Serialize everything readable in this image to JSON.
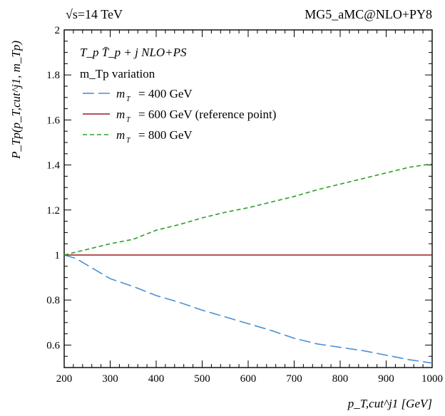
{
  "chart_data": {
    "type": "line",
    "top_left": "√s=14 TeV",
    "top_right": "MG5_aMC@NLO+PY8",
    "process": "T_p T̄_p + j  NLO+PS",
    "variation": "m_Tp variation",
    "ylabel": "P_Tp(p_T,cut^j1, m_Tp)",
    "xlabel": "p_T,cut^j1 [GeV]",
    "xlim": [
      200,
      1000
    ],
    "ylim": [
      0.5,
      2.0
    ],
    "xticks": [
      200,
      300,
      400,
      500,
      600,
      700,
      800,
      900,
      1000
    ],
    "yticks": [
      {
        "value": 0.6,
        "label": "0.6"
      },
      {
        "value": 0.8,
        "label": "0.8"
      },
      {
        "value": 1.0,
        "label": "1"
      },
      {
        "value": 1.2,
        "label": "1.2"
      },
      {
        "value": 1.4,
        "label": "1.4"
      },
      {
        "value": 1.6,
        "label": "1.6"
      },
      {
        "value": 1.8,
        "label": "1.8"
      },
      {
        "value": 2.0,
        "label": "2"
      }
    ],
    "legend_position": "top-left",
    "grid": false,
    "series": [
      {
        "name": "= 400 GeV",
        "color": "#4a8fd4",
        "style": "long-dash",
        "x": [
          200,
          225,
          250,
          275,
          300,
          350,
          400,
          450,
          500,
          550,
          600,
          650,
          700,
          750,
          800,
          850,
          900,
          950,
          1000
        ],
        "y": [
          1.0,
          0.985,
          0.955,
          0.925,
          0.895,
          0.86,
          0.82,
          0.79,
          0.755,
          0.725,
          0.695,
          0.665,
          0.63,
          0.605,
          0.59,
          0.575,
          0.555,
          0.535,
          0.52
        ]
      },
      {
        "name": "= 600 GeV (reference point)",
        "color": "#9b1b1b",
        "style": "solid",
        "x": [
          200,
          1000
        ],
        "y": [
          1.0,
          1.0
        ]
      },
      {
        "name": "= 800 GeV",
        "color": "#2aa02a",
        "style": "short-dash",
        "x": [
          200,
          250,
          300,
          350,
          400,
          450,
          500,
          550,
          600,
          650,
          700,
          750,
          800,
          850,
          900,
          950,
          1000
        ],
        "y": [
          1.0,
          1.025,
          1.05,
          1.07,
          1.11,
          1.135,
          1.165,
          1.19,
          1.21,
          1.235,
          1.26,
          1.29,
          1.315,
          1.34,
          1.365,
          1.39,
          1.405
        ]
      }
    ]
  }
}
